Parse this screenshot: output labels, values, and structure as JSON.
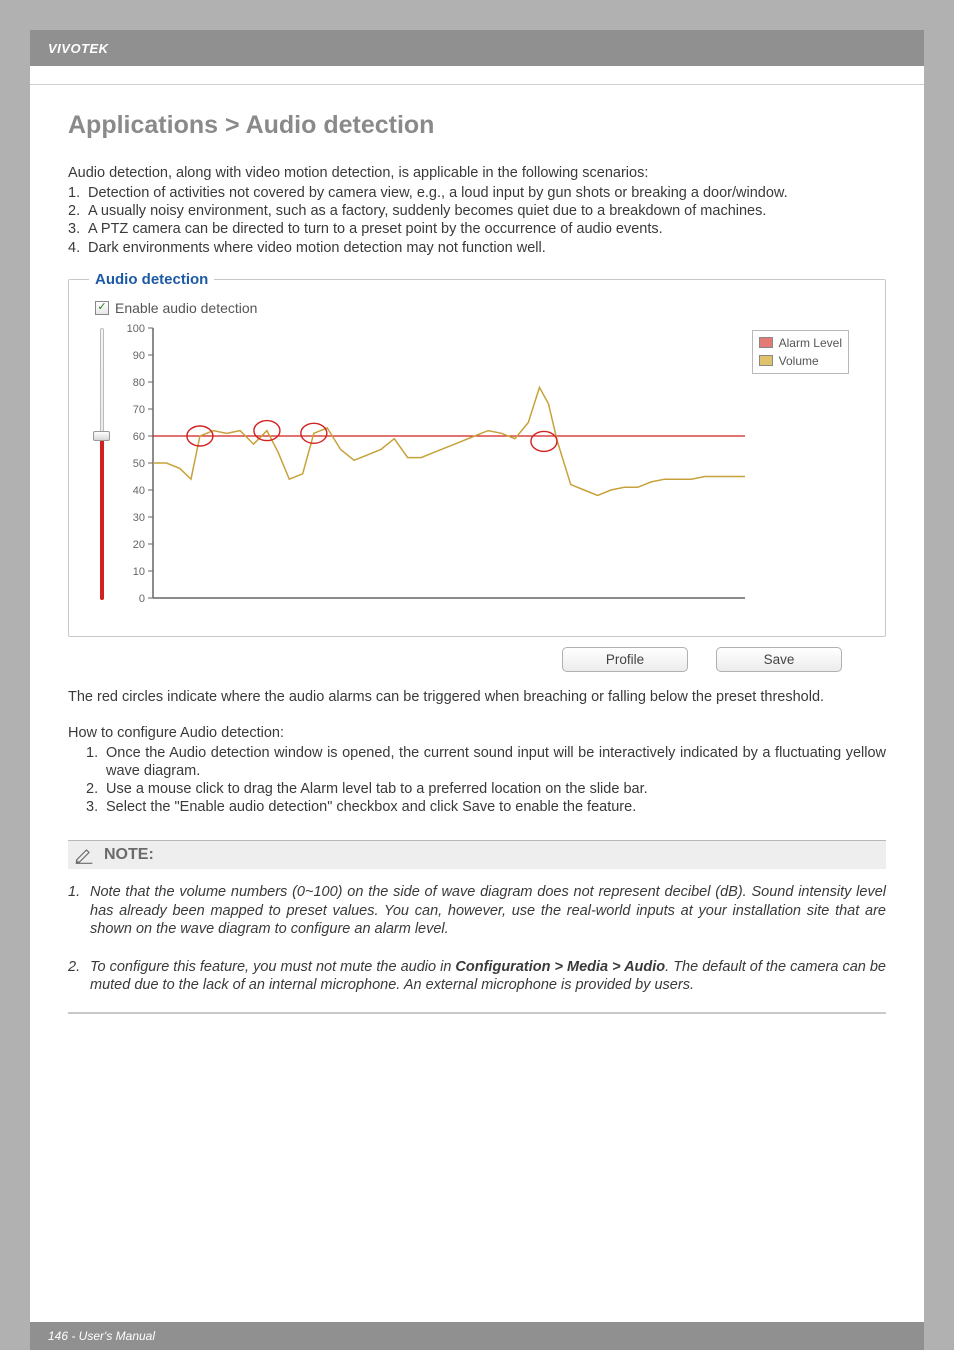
{
  "brand": "VIVOTEK",
  "title": "Applications > Audio detection",
  "intro": "Audio detection, along with video motion detection, is applicable in the following scenarios:",
  "scenarios": [
    "Detection of activities not covered by camera view, e.g., a loud input by gun shots or breaking a door/window.",
    "A usually noisy environment, such as a factory, suddenly becomes quiet due to a breakdown of machines.",
    "A PTZ camera can be directed to turn to a preset point by the occurrence of audio events.",
    "Dark environments where video motion detection may not function well."
  ],
  "panel": {
    "legend": "Audio detection",
    "enable_label": "Enable audio detection",
    "checked": true,
    "legend_items": {
      "alarm": "Alarm Level",
      "volume": "Volume"
    },
    "buttons": {
      "profile": "Profile",
      "save": "Save"
    }
  },
  "chart": {
    "type": "line",
    "title_fontsize": 15,
    "ylim": [
      0,
      100
    ],
    "ytick_step": 10,
    "yticks": [
      0,
      10,
      20,
      30,
      40,
      50,
      60,
      70,
      80,
      90,
      100
    ],
    "background_color": "#ffffff",
    "axis_color": "#666666",
    "tick_font_size": 11,
    "tick_color": "#666666",
    "alarm_level": 60,
    "alarm_line_color": "#d21f1f",
    "alarm_line_width": 1.3,
    "volume_line_color": "#c7a23a",
    "volume_line_width": 1.5,
    "circle_color": "#d21f1f",
    "circle_stroke_width": 1.4,
    "circle_radius": 10,
    "legend_border": "#b8b8b8",
    "swatch_alarm": "#e37a76",
    "swatch_volume": "#e0c26b",
    "volume_points": [
      [
        0,
        50
      ],
      [
        12,
        50
      ],
      [
        24,
        48
      ],
      [
        34,
        44
      ],
      [
        42,
        60
      ],
      [
        54,
        62
      ],
      [
        66,
        61
      ],
      [
        78,
        62
      ],
      [
        90,
        57
      ],
      [
        102,
        62
      ],
      [
        112,
        54
      ],
      [
        122,
        44
      ],
      [
        134,
        46
      ],
      [
        144,
        61
      ],
      [
        156,
        63
      ],
      [
        168,
        55
      ],
      [
        180,
        51
      ],
      [
        192,
        53
      ],
      [
        204,
        55
      ],
      [
        216,
        59
      ],
      [
        228,
        52
      ],
      [
        240,
        52
      ],
      [
        252,
        54
      ],
      [
        264,
        56
      ],
      [
        276,
        58
      ],
      [
        288,
        60
      ],
      [
        300,
        62
      ],
      [
        312,
        61
      ],
      [
        324,
        59
      ],
      [
        336,
        65
      ],
      [
        346,
        78
      ],
      [
        354,
        72
      ],
      [
        362,
        58
      ],
      [
        374,
        42
      ],
      [
        386,
        40
      ],
      [
        398,
        38
      ],
      [
        410,
        40
      ],
      [
        422,
        41
      ],
      [
        434,
        41
      ],
      [
        446,
        43
      ],
      [
        458,
        44
      ],
      [
        470,
        44
      ],
      [
        482,
        44
      ],
      [
        494,
        45
      ],
      [
        506,
        45
      ],
      [
        518,
        45
      ],
      [
        530,
        45
      ]
    ],
    "circle_centers": [
      [
        42,
        60
      ],
      [
        102,
        62
      ],
      [
        144,
        61
      ],
      [
        350,
        58
      ]
    ]
  },
  "after_chart": "The red circles indicate where the audio alarms can be triggered when breaching or falling below the preset threshold.",
  "howto_title": "How to configure Audio detection:",
  "howto": [
    "Once the Audio detection window is opened, the current sound input will be interactively indicated by a fluctuating yellow wave diagram.",
    "Use a mouse click to drag the Alarm level tab to a preferred location on the slide bar.",
    "Select the \"Enable audio detection\" checkbox and click Save to enable the feature."
  ],
  "note": {
    "label": "NOTE:",
    "items": [
      {
        "pre": "Note that the volume numbers (0~100) on the side of wave diagram does not represent decibel (dB). Sound intensity level has already been mapped to preset values. You can, however, use the real-world inputs at your installation site that are shown on the wave diagram to configure an alarm level.",
        "bold": "",
        "post": ""
      },
      {
        "pre": "To configure this feature, you must not mute the audio in ",
        "bold": "Configuration > Media > Audio",
        "post": ". The default of the camera can be muted due to the lack of an internal microphone. An external microphone is provided by users."
      }
    ]
  },
  "footer": "146 - User's Manual"
}
